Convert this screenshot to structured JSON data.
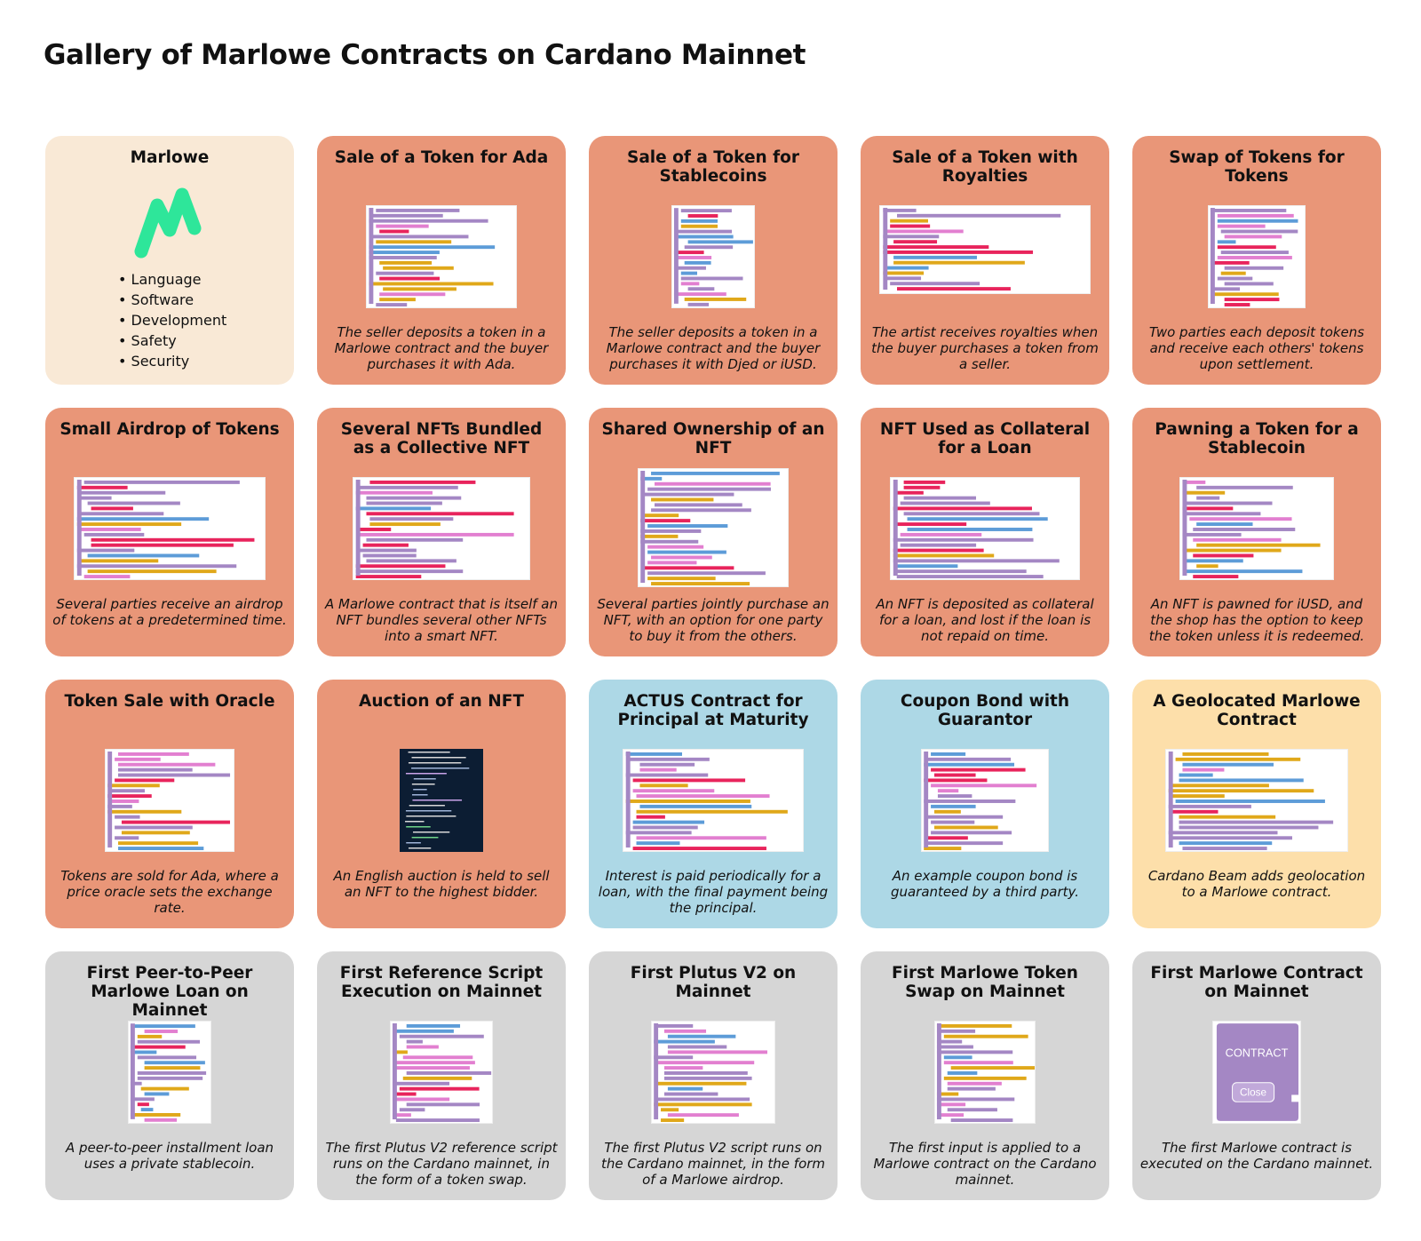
{
  "page_title": "Gallery of Marlowe Contracts on Cardano Mainnet",
  "colors": {
    "salmon": "#e99678",
    "blue": "#add8e6",
    "cream": "#f9e9d6",
    "peach": "#fddfaa",
    "gray": "#d6d6d6",
    "logo_green": "#2ee69a"
  },
  "intro": {
    "title": "Marlowe",
    "logo": "marlowe-logo",
    "bullets": [
      "Language",
      "Software",
      "Development",
      "Safety",
      "Security"
    ]
  },
  "cards": [
    {
      "title": "Sale of a Token for Ada",
      "description": "The seller deposits a token in a Marlowe contract and the buyer purchases it with Ada.",
      "color": "salmon"
    },
    {
      "title": "Sale of a Token for Stablecoins",
      "description": "The seller deposits a token in a Marlowe contract and the buyer purchases it with Djed or iUSD.",
      "color": "salmon"
    },
    {
      "title": "Sale of a Token with Royalties",
      "description": "The artist receives royalties when the buyer purchases a token from a seller.",
      "color": "salmon"
    },
    {
      "title": "Swap of Tokens for Tokens",
      "description": "Two parties each deposit tokens and receive each others' tokens upon settlement.",
      "color": "salmon"
    },
    {
      "title": "Small Airdrop of Tokens",
      "description": "Several parties receive an airdrop of tokens at a predetermined time.",
      "color": "salmon"
    },
    {
      "title": "Several NFTs Bundled as a Collective NFT",
      "description": "A Marlowe contract that is itself an NFT bundles several other NFTs into a smart NFT.",
      "color": "salmon"
    },
    {
      "title": "Shared Ownership of an NFT",
      "description": "Several parties jointly purchase an NFT, with an option for one party to buy it from the others.",
      "color": "salmon"
    },
    {
      "title": "NFT Used as Collateral for a Loan",
      "description": "An NFT is deposited as collateral for a loan, and lost if the loan is not repaid on time.",
      "color": "salmon"
    },
    {
      "title": "Pawning a Token for a Stablecoin",
      "description": "An NFT is pawned for iUSD, and the shop has the option to keep the token unless it is redeemed.",
      "color": "salmon"
    },
    {
      "title": "Token Sale with Oracle",
      "description": "Tokens are sold for Ada, where a price oracle sets the exchange rate.",
      "color": "salmon"
    },
    {
      "title": "Auction of an NFT",
      "description": "An English auction is held to sell an NFT to the highest bidder.",
      "color": "salmon"
    },
    {
      "title": "ACTUS Contract for Principal at Maturity",
      "description": "Interest is paid periodically for a loan, with the final payment being the principal.",
      "color": "blue"
    },
    {
      "title": "Coupon Bond with Guarantor",
      "description": "An example coupon bond is guaranteed by a third party.",
      "color": "blue"
    },
    {
      "title": "A Geolocated Marlowe Contract",
      "description": "Cardano Beam adds geolocation to a Marlowe contract.",
      "color": "peach"
    },
    {
      "title": "First Peer-to-Peer Marlowe Loan on Mainnet",
      "description": "A peer-to-peer installment loan uses a private stablecoin.",
      "color": "gray"
    },
    {
      "title": "First Reference Script Execution on Mainnet",
      "description": "The first Plutus V2 reference script runs on the Cardano mainnet, in the form of a token swap.",
      "color": "gray"
    },
    {
      "title": "First Plutus V2 on Mainnet",
      "description": "The first Plutus V2 script runs on the Cardano mainnet, in the form of a Marlowe airdrop.",
      "color": "gray"
    },
    {
      "title": "First Marlowe Token Swap on Mainnet",
      "description": "The first input is applied to a Marlowe contract on the Cardano mainnet.",
      "color": "gray"
    },
    {
      "title": "First Marlowe Contract on Mainnet",
      "description": "The first Marlowe contract is executed on the Cardano mainnet.",
      "color": "gray"
    }
  ],
  "contract_thumb": {
    "contract_label": "CONTRACT",
    "close_label": "Close"
  }
}
